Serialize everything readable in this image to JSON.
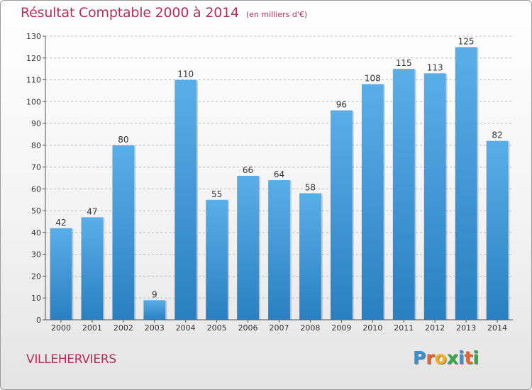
{
  "header": {
    "title": "Résultat Comptable 2000 à 2014",
    "subtitle": "(en milliers d'€)"
  },
  "footer": {
    "city": "VILLEHERVIERS",
    "logo_letters": [
      {
        "ch": "P",
        "color": "#3a8fd0"
      },
      {
        "ch": "r",
        "color": "#e8642a"
      },
      {
        "ch": "o",
        "color": "#f2b21e"
      },
      {
        "ch": "x",
        "color": "#3aa84a"
      },
      {
        "ch": "i",
        "color": "#3a8fd0"
      },
      {
        "ch": "t",
        "color": "#e8642a"
      },
      {
        "ch": "i",
        "color": "#3aa84a"
      }
    ]
  },
  "chart_data": {
    "type": "bar",
    "title": "Résultat Comptable 2000 à 2014",
    "subtitle": "(en milliers d'€)",
    "categories": [
      "2000",
      "2001",
      "2002",
      "2003",
      "2004",
      "2005",
      "2006",
      "2007",
      "2008",
      "2009",
      "2010",
      "2011",
      "2012",
      "2013",
      "2014"
    ],
    "values": [
      42,
      47,
      80,
      9,
      110,
      55,
      66,
      64,
      58,
      96,
      108,
      115,
      113,
      125,
      82
    ],
    "ylim": [
      0,
      130
    ],
    "yticks": [
      0,
      10,
      20,
      30,
      40,
      50,
      60,
      70,
      80,
      90,
      100,
      110,
      120,
      130
    ],
    "grid": true,
    "bar_color_top": "#5aaee8",
    "bar_color_bottom": "#2a7fc0"
  }
}
